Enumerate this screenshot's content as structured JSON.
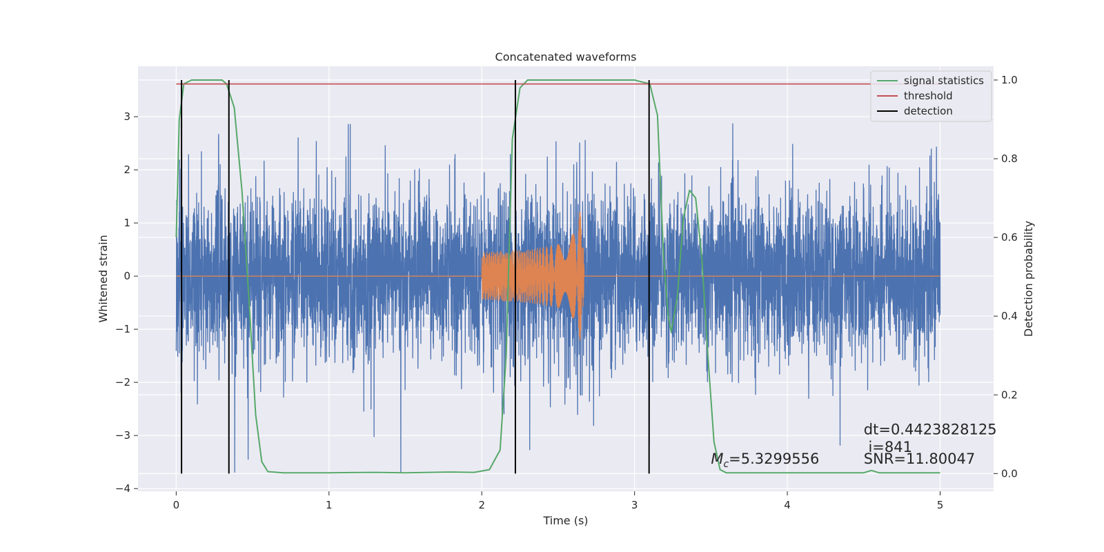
{
  "chart_data": {
    "type": "line",
    "title": "Concatenated waveforms",
    "xlabel": "Time (s)",
    "ylabel": "Whitened strain",
    "ylabel_right": "Detection probability",
    "xlim": [
      -0.25,
      5.35
    ],
    "ylim": [
      -4.05,
      3.95
    ],
    "ylim_right": [
      -0.045,
      1.035
    ],
    "x_ticks": [
      0,
      1,
      2,
      3,
      4,
      5
    ],
    "y_ticks": [
      -4,
      -3,
      -2,
      -1,
      0,
      1,
      2,
      3
    ],
    "y_ticks_right": [
      0.0,
      0.2,
      0.4,
      0.6,
      0.8,
      1.0
    ],
    "grid": true,
    "legend_position": "top-right",
    "series": [
      {
        "name": "",
        "axis": "left",
        "color": "#4c72b0",
        "kind": "noise",
        "x_range": [
          0,
          5
        ],
        "envelope": [
          1.6,
          3.5
        ]
      },
      {
        "name": "",
        "axis": "left",
        "color": "#dd8452",
        "kind": "chirp",
        "x": [
          0,
          2.0,
          2.0,
          2.3,
          2.5,
          2.6,
          2.66,
          2.67,
          5.0
        ],
        "amplitude": [
          0,
          0,
          0.45,
          0.5,
          0.6,
          0.8,
          1.4,
          0,
          0
        ]
      },
      {
        "name": "signal statistics",
        "axis": "right",
        "color": "#55a868",
        "x": [
          0.0,
          0.02,
          0.05,
          0.1,
          0.3,
          0.33,
          0.38,
          0.43,
          0.48,
          0.52,
          0.56,
          0.6,
          0.7,
          1.0,
          1.3,
          1.5,
          1.8,
          1.95,
          2.05,
          2.12,
          2.16,
          2.2,
          2.25,
          2.3,
          2.5,
          3.0,
          3.1,
          3.15,
          3.19,
          3.22,
          3.24,
          3.28,
          3.32,
          3.36,
          3.4,
          3.44,
          3.48,
          3.52,
          3.56,
          3.6,
          4.0,
          4.5,
          4.55,
          4.6,
          5.0
        ],
        "y": [
          0.6,
          0.9,
          0.99,
          1.0,
          1.0,
          0.99,
          0.93,
          0.72,
          0.42,
          0.15,
          0.03,
          0.005,
          0.002,
          0.002,
          0.003,
          0.002,
          0.004,
          0.003,
          0.01,
          0.06,
          0.3,
          0.85,
          0.98,
          1.0,
          1.0,
          1.0,
          0.99,
          0.91,
          0.55,
          0.4,
          0.36,
          0.45,
          0.65,
          0.72,
          0.7,
          0.55,
          0.3,
          0.08,
          0.01,
          0.002,
          0.002,
          0.002,
          0.008,
          0.002,
          0.002
        ]
      },
      {
        "name": "threshold",
        "axis": "right",
        "color": "#c44e52",
        "x": [
          0,
          5
        ],
        "y": [
          0.99,
          0.99
        ]
      },
      {
        "name": "detection",
        "axis": "right",
        "color": "#000000",
        "kind": "vlines",
        "x": [
          0.035,
          0.345,
          2.22,
          3.095
        ],
        "ymin": 0.0,
        "ymax": 1.0
      }
    ],
    "annotations": [
      {
        "text": "dt=0.4423828125",
        "x": 4.5,
        "y": 0.1
      },
      {
        "text": " i=841",
        "x": 4.5,
        "y": 0.055
      },
      {
        "text": "SNR=11.80047",
        "x": 4.5,
        "y": 0.025
      },
      {
        "text_main": "M",
        "text_sub": "c",
        "text_rest": "=5.3299556",
        "x": 3.5,
        "y": 0.025
      }
    ]
  },
  "colors": {
    "plot_background": "#eaeaf2",
    "grid": "#ffffff",
    "text": "#262626"
  }
}
